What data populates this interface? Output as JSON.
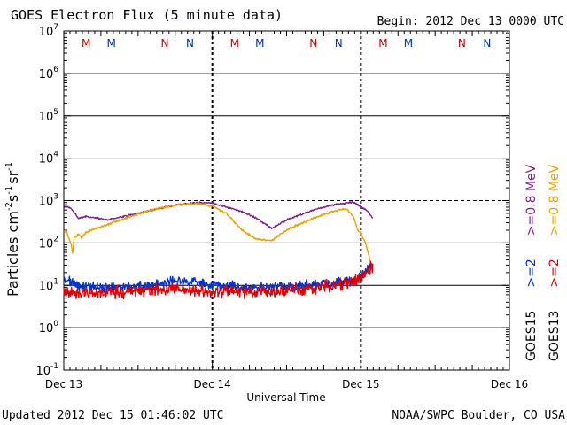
{
  "chart_data": {
    "type": "line",
    "title": "GOES Electron Flux (5 minute data)",
    "begin_label": "Begin: 2012 Dec 13 0000 UTC",
    "xlabel": "Universal Time",
    "ylabel_main": "Particles cm",
    "ylabel_exp1": "-2",
    "ylabel_mid1": "s",
    "ylabel_exp2": "-1",
    "ylabel_mid2": "sr",
    "ylabel_exp3": "-1",
    "x_tick_labels": [
      "Dec 13",
      "Dec 14",
      "Dec 15",
      "Dec 16"
    ],
    "xlim_days": [
      0,
      3
    ],
    "y_tick_exponents": [
      "7",
      "6",
      "5",
      "4",
      "3",
      "2",
      "1",
      "0",
      "-1"
    ],
    "y_tick_base": "10",
    "ylim_log10": [
      -1,
      7
    ],
    "threshold_log10": 3,
    "local_time_markers": [
      {
        "label": "M",
        "color": "#cc0000",
        "day": 0.15
      },
      {
        "label": "M",
        "color": "#0033aa",
        "day": 0.32
      },
      {
        "label": "N",
        "color": "#cc0000",
        "day": 0.68
      },
      {
        "label": "N",
        "color": "#0033aa",
        "day": 0.85
      },
      {
        "label": "M",
        "color": "#cc0000",
        "day": 1.15
      },
      {
        "label": "M",
        "color": "#0033aa",
        "day": 1.32
      },
      {
        "label": "N",
        "color": "#cc0000",
        "day": 1.68
      },
      {
        "label": "N",
        "color": "#0033aa",
        "day": 1.85
      },
      {
        "label": "M",
        "color": "#cc0000",
        "day": 2.15
      },
      {
        "label": "M",
        "color": "#0033aa",
        "day": 2.32
      },
      {
        "label": "N",
        "color": "#cc0000",
        "day": 2.68
      },
      {
        "label": "N",
        "color": "#0033aa",
        "day": 2.85
      }
    ],
    "legend": {
      "goes15": {
        "label": "GOES15",
        "ge08": ">=0.8 MeV",
        "ge2": ">=2",
        "ge08_color": "#7a1f8f",
        "ge2_color": "#0033cc"
      },
      "goes13": {
        "label": "GOES13",
        "ge08": ">=0.8 MeV",
        "ge2": ">=2",
        "ge08_color": "#e8a100",
        "ge2_color": "#dd0000"
      }
    },
    "series": [
      {
        "name": "GOES15 >=0.8 MeV",
        "color": "#7a1f8f",
        "noise": 0.012,
        "days": [
          0.0,
          0.05,
          0.1,
          0.15,
          0.3,
          0.45,
          0.6,
          0.75,
          0.9,
          1.0,
          1.1,
          1.2,
          1.3,
          1.4,
          1.5,
          1.65,
          1.8,
          1.95,
          2.05,
          2.08
        ],
        "values": [
          750,
          650,
          380,
          420,
          350,
          460,
          600,
          780,
          900,
          870,
          700,
          550,
          380,
          220,
          350,
          550,
          780,
          920,
          550,
          380
        ]
      },
      {
        "name": "GOES13 >=0.8 MeV",
        "color": "#e8a100",
        "noise": 0.015,
        "days": [
          0.0,
          0.02,
          0.05,
          0.06,
          0.07,
          0.1,
          0.12,
          0.15,
          0.3,
          0.45,
          0.6,
          0.75,
          0.9,
          1.0,
          1.1,
          1.2,
          1.3,
          1.4,
          1.5,
          1.65,
          1.8,
          1.9,
          1.95,
          1.98,
          2.0,
          2.02,
          2.04,
          2.06,
          2.08
        ],
        "values": [
          200,
          180,
          90,
          55,
          130,
          160,
          130,
          180,
          280,
          420,
          620,
          780,
          850,
          750,
          480,
          200,
          120,
          115,
          200,
          350,
          540,
          650,
          420,
          200,
          160,
          120,
          80,
          40,
          25
        ]
      },
      {
        "name": "GOES15 >=2 MeV",
        "color": "#0033cc",
        "noise": 0.07,
        "days": [
          0.0,
          0.1,
          0.2,
          0.4,
          0.6,
          0.75,
          0.9,
          1.0,
          1.2,
          1.4,
          1.6,
          1.8,
          1.9,
          1.95,
          2.0,
          2.05,
          2.08
        ],
        "values": [
          14,
          10,
          9,
          9,
          10,
          13,
          12,
          10,
          9,
          9,
          10,
          11,
          13,
          12,
          17,
          25,
          30
        ]
      },
      {
        "name": "GOES13 >=2 MeV",
        "color": "#dd0000",
        "noise": 0.09,
        "days": [
          0.0,
          0.2,
          0.4,
          0.6,
          0.8,
          1.0,
          1.2,
          1.4,
          1.6,
          1.8,
          1.9,
          1.95,
          2.0,
          2.05,
          2.08
        ],
        "values": [
          7,
          6.5,
          7,
          8,
          8,
          7,
          7,
          7.5,
          8,
          10,
          11,
          12,
          15,
          22,
          28
        ]
      }
    ]
  },
  "footer": {
    "updated": "Updated 2012 Dec 15 01:46:02 UTC",
    "source": "NOAA/SWPC Boulder, CO USA"
  }
}
